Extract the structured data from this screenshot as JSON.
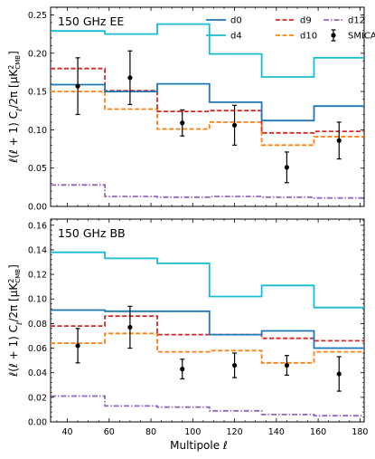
{
  "x_axis": {
    "label": "Multipole ℓ",
    "ticks": [
      40,
      60,
      80,
      100,
      120,
      140,
      160,
      180
    ],
    "range": [
      32,
      182
    ]
  },
  "y_axis_label_parts": [
    "ℓ(ℓ + 1) C",
    "ℓ",
    "/2π [μK",
    "2",
    "CMB",
    "]"
  ],
  "legend": [
    {
      "name": "d0",
      "color": "#1f77b4",
      "style": "solid"
    },
    {
      "name": "d9",
      "color": "#d62728",
      "style": "dashed"
    },
    {
      "name": "d12",
      "color": "#9467bd",
      "style": "dashdot"
    },
    {
      "name": "d4",
      "color": "#17becf",
      "style": "solid"
    },
    {
      "name": "d10",
      "color": "#ff7f0e",
      "style": "dashed"
    },
    {
      "name": "SMICA",
      "color": "#000000",
      "style": "errorbar"
    }
  ],
  "chart_data": [
    {
      "type": "line",
      "title": "150 GHz EE",
      "bin_edges": [
        32,
        58,
        83,
        108,
        133,
        158,
        182
      ],
      "ylim": [
        0,
        0.26
      ],
      "yticks": [
        "0.00",
        "0.05",
        "0.10",
        "0.15",
        "0.20",
        "0.25"
      ],
      "series": [
        {
          "name": "d0",
          "values": [
            0.159,
            0.15,
            0.16,
            0.136,
            0.112,
            0.131
          ]
        },
        {
          "name": "d4",
          "values": [
            0.229,
            0.225,
            0.238,
            0.199,
            0.169,
            0.194
          ]
        },
        {
          "name": "d9",
          "values": [
            0.18,
            0.151,
            0.124,
            0.125,
            0.096,
            0.098
          ]
        },
        {
          "name": "d10",
          "values": [
            0.15,
            0.127,
            0.101,
            0.11,
            0.08,
            0.091
          ]
        },
        {
          "name": "d12",
          "values": [
            0.028,
            0.013,
            0.012,
            0.013,
            0.012,
            0.011
          ]
        }
      ],
      "points": {
        "name": "SMICA",
        "x": [
          45,
          70,
          95,
          120,
          145,
          170
        ],
        "y": [
          0.157,
          0.168,
          0.109,
          0.106,
          0.051,
          0.086
        ],
        "yerr": [
          0.037,
          0.035,
          0.017,
          0.026,
          0.02,
          0.024
        ]
      }
    },
    {
      "type": "line",
      "title": "150 GHz BB",
      "bin_edges": [
        32,
        58,
        83,
        108,
        133,
        158,
        182
      ],
      "ylim": [
        0,
        0.165
      ],
      "yticks": [
        "0.00",
        "0.02",
        "0.04",
        "0.06",
        "0.08",
        "0.10",
        "0.12",
        "0.14",
        "0.16"
      ],
      "series": [
        {
          "name": "d0",
          "values": [
            0.091,
            0.09,
            0.09,
            0.071,
            0.074,
            0.06
          ]
        },
        {
          "name": "d4",
          "values": [
            0.138,
            0.133,
            0.129,
            0.102,
            0.111,
            0.093
          ]
        },
        {
          "name": "d9",
          "values": [
            0.078,
            0.086,
            0.071,
            0.071,
            0.068,
            0.066
          ]
        },
        {
          "name": "d10",
          "values": [
            0.064,
            0.072,
            0.057,
            0.058,
            0.048,
            0.057
          ]
        },
        {
          "name": "d12",
          "values": [
            0.021,
            0.013,
            0.012,
            0.009,
            0.006,
            0.005
          ]
        }
      ],
      "points": {
        "name": "SMICA",
        "x": [
          45,
          70,
          95,
          120,
          145,
          170
        ],
        "y": [
          0.062,
          0.077,
          0.043,
          0.046,
          0.046,
          0.039
        ],
        "yerr": [
          0.014,
          0.017,
          0.008,
          0.01,
          0.008,
          0.014
        ]
      }
    }
  ]
}
